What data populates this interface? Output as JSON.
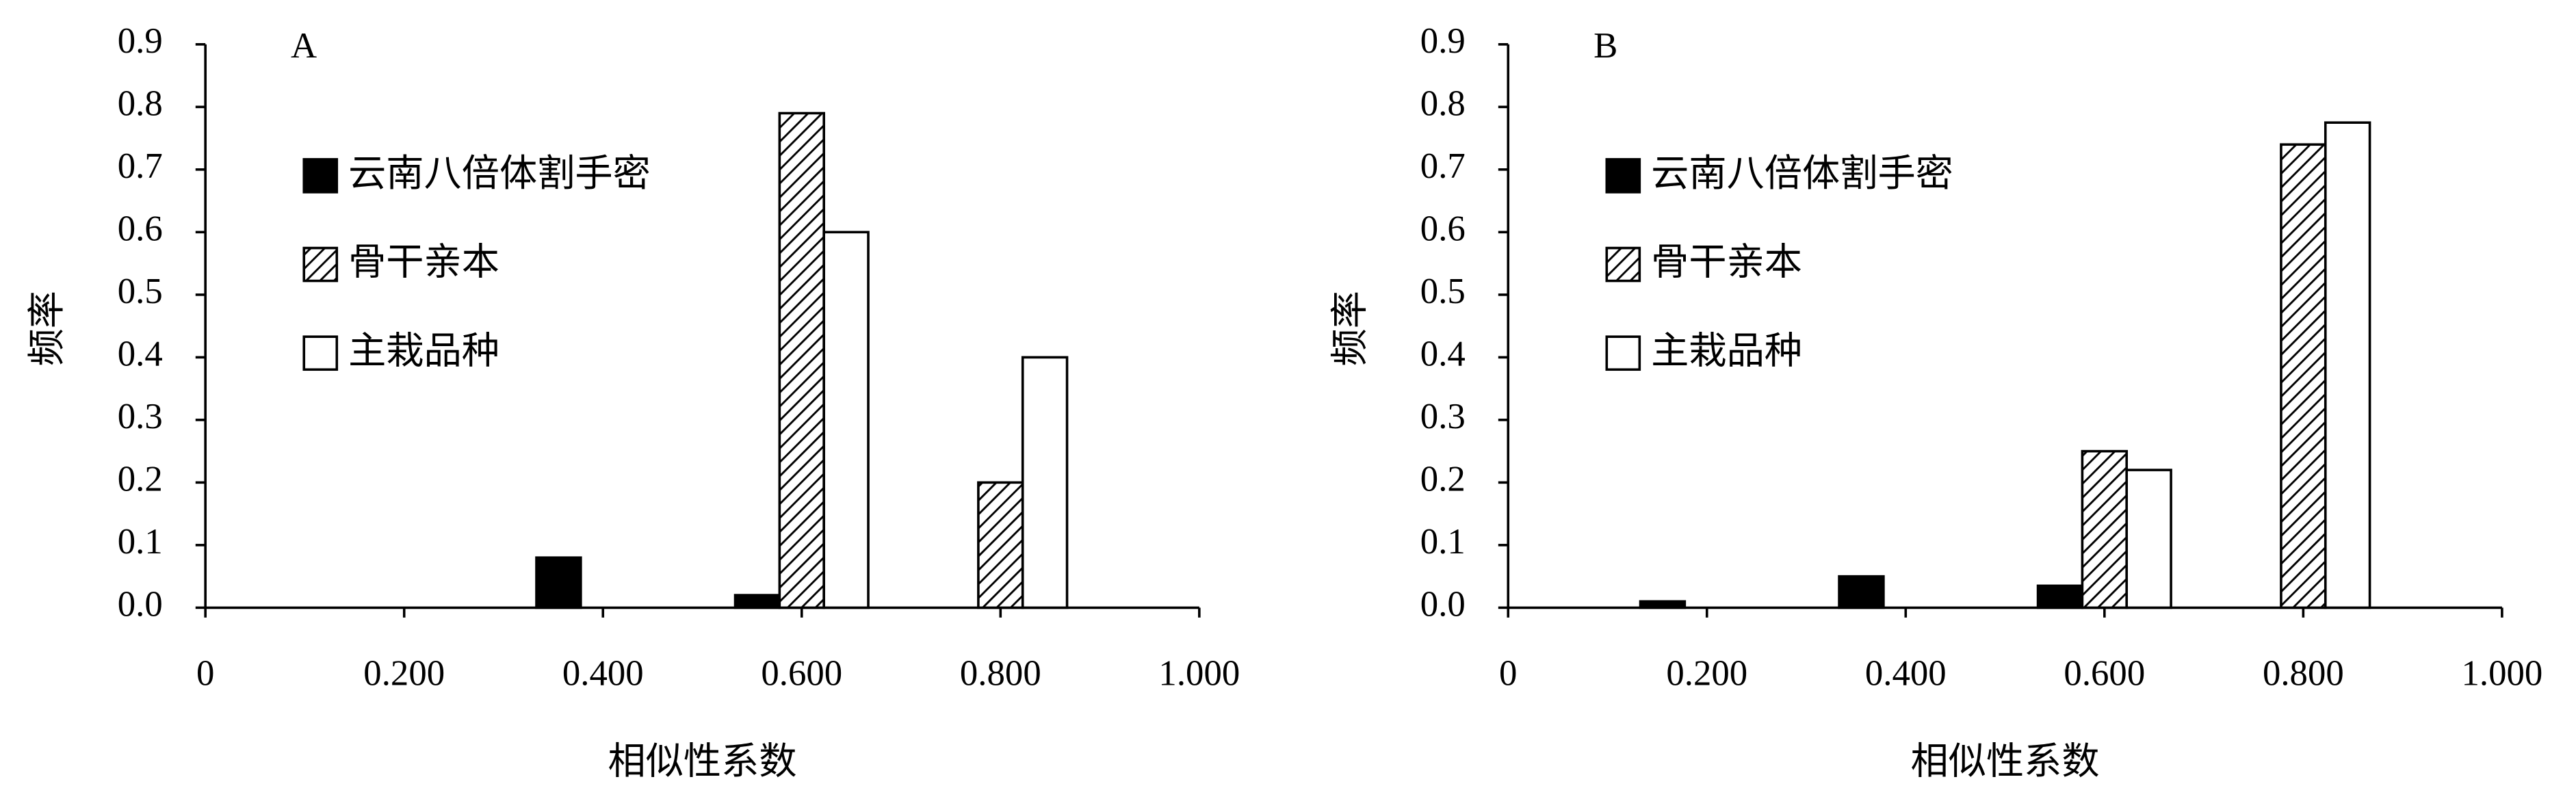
{
  "chart_data": [
    {
      "type": "bar",
      "title": "A",
      "x_label": "相似性系数",
      "y_label": "频率",
      "x": [
        0.2,
        0.4,
        0.6,
        0.8,
        1.0
      ],
      "xlim": [
        0,
        1
      ],
      "xticks": [
        0,
        {
          "value": 0.2,
          "label": "0.200"
        },
        {
          "value": 0.4,
          "label": "0.400"
        },
        {
          "value": 0.6,
          "label": "0.600"
        },
        {
          "value": 0.8,
          "label": "0.800"
        },
        {
          "value": 1.0,
          "label": "1.000"
        }
      ],
      "ylim": [
        0,
        0.9
      ],
      "yticks": [
        {
          "value": 0,
          "label": "0.0"
        },
        0.1,
        0.2,
        0.3,
        0.4,
        0.5,
        0.6,
        0.7,
        0.8,
        0.9
      ],
      "series": [
        {
          "name": "云南八倍体割手密",
          "color": "#000000",
          "fill": "solid",
          "values": [
            0,
            0.08,
            0.02,
            0,
            0
          ]
        },
        {
          "name": "骨干亲本",
          "color": "#000000",
          "fill": "hatch",
          "values": [
            0,
            0,
            0.79,
            0.2,
            0
          ]
        },
        {
          "name": "主栽品种",
          "color": "#ffffff",
          "fill": "solid",
          "values": [
            0,
            0,
            0.6,
            0.4,
            0
          ]
        }
      ]
    },
    {
      "type": "bar",
      "title": "B",
      "x_label": "相似性系数",
      "y_label": "频率",
      "x": [
        0.2,
        0.4,
        0.6,
        0.8,
        1.0
      ],
      "xlim": [
        0,
        1
      ],
      "xticks": [
        0,
        {
          "value": 0.2,
          "label": "0.200"
        },
        {
          "value": 0.4,
          "label": "0.400"
        },
        {
          "value": 0.6,
          "label": "0.600"
        },
        {
          "value": 0.8,
          "label": "0.800"
        },
        {
          "value": 1.0,
          "label": "1.000"
        }
      ],
      "ylim": [
        0,
        0.9
      ],
      "yticks": [
        {
          "value": 0,
          "label": "0.0"
        },
        0.1,
        0.2,
        0.3,
        0.4,
        0.5,
        0.6,
        0.7,
        0.8,
        0.9
      ],
      "series": [
        {
          "name": "云南八倍体割手密",
          "color": "#000000",
          "fill": "solid",
          "values": [
            0.01,
            0.05,
            0.035,
            0,
            0
          ]
        },
        {
          "name": "骨干亲本",
          "color": "#000000",
          "fill": "hatch",
          "values": [
            0,
            0,
            0.25,
            0.74,
            0
          ]
        },
        {
          "name": "主栽品种",
          "color": "#ffffff",
          "fill": "solid",
          "values": [
            0,
            0,
            0.22,
            0.775,
            0
          ]
        }
      ]
    }
  ]
}
